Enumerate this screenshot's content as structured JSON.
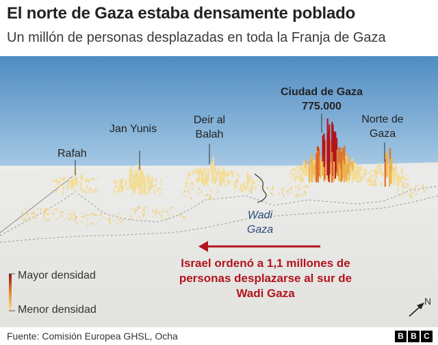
{
  "header": {
    "title": "El norte de Gaza estaba densamente poblado",
    "subtitle": "Un millón de personas desplazadas en toda la Franja de Gaza"
  },
  "places": {
    "rafah": "Rafah",
    "jan_yunis": "Jan Yunis",
    "deir_line1": "Deir al",
    "deir_line2": "Balah",
    "ciudad_line1": "Ciudad de Gaza",
    "ciudad_line2": "775.000",
    "norte_line1": "Norte de",
    "norte_line2": "Gaza"
  },
  "wadi": {
    "line1": "Wadi",
    "line2": "Gaza"
  },
  "warning": {
    "line1": "Israel ordenó a 1,1 millones de",
    "line2": "personas desplazarse al sur de",
    "line3": "Wadi Gaza"
  },
  "legend": {
    "high": "Mayor densidad",
    "low": "Menor densidad"
  },
  "compass": {
    "north": "N"
  },
  "footer": {
    "source": "Fuente: Comisión Europea GHSL, Ocha",
    "brand": [
      "B",
      "B",
      "C"
    ]
  },
  "colors": {
    "sea": "#7fb0d6",
    "land": "#e7e7e5",
    "density_low": "#f2d890",
    "density_mid": "#e88a2a",
    "density_high": "#b3141d",
    "arrow": "#b3141d"
  }
}
